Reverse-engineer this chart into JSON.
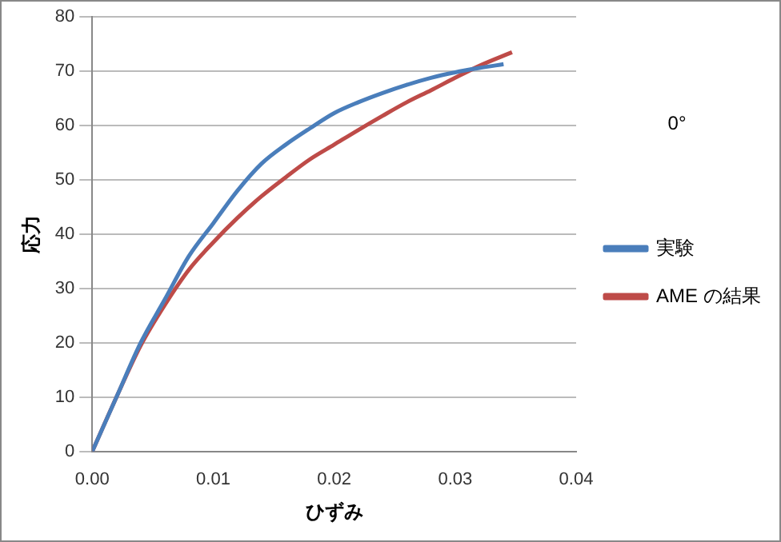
{
  "chart_data": {
    "type": "line",
    "xlabel": "ひずみ",
    "ylabel": "応力",
    "annotations": [
      "0°"
    ],
    "xlim": [
      0,
      0.04
    ],
    "xticks": [
      {
        "value": 0,
        "label": "0.00"
      },
      {
        "value": 0.01,
        "label": "0.01"
      },
      {
        "value": 0.02,
        "label": "0.02"
      },
      {
        "value": 0.03,
        "label": "0.03"
      },
      {
        "value": 0.04,
        "label": "0.04"
      }
    ],
    "ylim": [
      0,
      80
    ],
    "yticks": [
      0,
      10,
      20,
      30,
      40,
      50,
      60,
      70,
      80
    ],
    "grid": "y",
    "legend": "right",
    "marker": "none",
    "line_style": "solid",
    "series": [
      {
        "name": "実験",
        "color": "#4a7ebb",
        "x": [
          0,
          0.002,
          0.004,
          0.006,
          0.008,
          0.01,
          0.012,
          0.014,
          0.016,
          0.018,
          0.02,
          0.022,
          0.024,
          0.026,
          0.028,
          0.03,
          0.032,
          0.034
        ],
        "values": [
          0,
          10,
          20,
          28,
          36,
          42,
          48,
          53,
          56.5,
          59.5,
          62.3,
          64.3,
          66,
          67.5,
          68.8,
          69.8,
          70.6,
          71.3
        ]
      },
      {
        "name": "AME の結果",
        "color": "#be4b48",
        "x": [
          0,
          0.002,
          0.004,
          0.006,
          0.008,
          0.01,
          0.012,
          0.014,
          0.016,
          0.018,
          0.02,
          0.022,
          0.024,
          0.026,
          0.028,
          0.03,
          0.032,
          0.0347
        ],
        "values": [
          0,
          10,
          19.5,
          27,
          33.5,
          38.5,
          43,
          47,
          50.5,
          53.8,
          56.5,
          59.2,
          61.8,
          64.3,
          66.5,
          68.8,
          71,
          73.5
        ]
      }
    ]
  }
}
